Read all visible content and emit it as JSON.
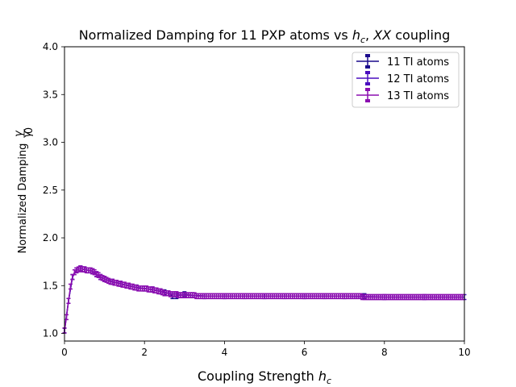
{
  "chart_data": {
    "type": "line",
    "title_parts": {
      "prefix": "Normalized Damping for 11 PXP atoms vs ",
      "var1": "h",
      "var1_sub": "c",
      "sep": ", ",
      "var2": "XX",
      "suffix": " coupling"
    },
    "xlabel_parts": {
      "text": "Coupling Strength ",
      "var": "h",
      "sub": "c"
    },
    "ylabel_parts": {
      "text": "Normalized Damping ",
      "num": "γ",
      "den": "γ",
      "den_sub": "0"
    },
    "xlim": [
      0,
      10
    ],
    "ylim": [
      0.92,
      4.0
    ],
    "xticks": [
      0,
      2,
      4,
      6,
      8,
      10
    ],
    "xtick_labels": [
      "0",
      "2",
      "4",
      "6",
      "8",
      "10"
    ],
    "yticks": [
      1.0,
      1.5,
      2.0,
      2.5,
      3.0,
      3.5,
      4.0
    ],
    "ytick_labels": [
      "1.0",
      "1.5",
      "2.0",
      "2.5",
      "3.0",
      "3.5",
      "4.0"
    ],
    "grid": false,
    "legend_position": "top-right",
    "series": [
      {
        "name": "11 TI atoms",
        "color": "#1a0a8c",
        "x": [
          0.0,
          0.1,
          0.2,
          0.3,
          0.4,
          0.5,
          0.6,
          0.7,
          0.8,
          0.9,
          1.0,
          1.2,
          1.4,
          1.6,
          1.8,
          2.0,
          2.2,
          2.4,
          2.5,
          2.6,
          2.7,
          2.8,
          2.9,
          3.0,
          3.2,
          3.5,
          4.0,
          4.5,
          5.0,
          5.5,
          6.0,
          6.5,
          7.0,
          7.5
        ],
        "y": [
          1.03,
          1.34,
          1.59,
          1.66,
          1.68,
          1.67,
          1.66,
          1.65,
          1.62,
          1.59,
          1.57,
          1.54,
          1.52,
          1.5,
          1.48,
          1.47,
          1.46,
          1.44,
          1.43,
          1.42,
          1.39,
          1.39,
          1.4,
          1.41,
          1.4,
          1.39,
          1.39,
          1.39,
          1.39,
          1.39,
          1.39,
          1.39,
          1.39,
          1.39
        ]
      },
      {
        "name": "12 TI atoms",
        "color": "#4a0dbf",
        "x": [
          0.0,
          0.1,
          0.2,
          0.3,
          0.4,
          0.5,
          0.6,
          0.7,
          0.8,
          0.9,
          1.0,
          1.2,
          1.4,
          1.6,
          1.8,
          2.0,
          2.2,
          2.4,
          2.6,
          2.8,
          3.0,
          3.5,
          4.0,
          5.0,
          6.0,
          7.0,
          8.0,
          9.0,
          10.0
        ],
        "y": [
          1.03,
          1.34,
          1.59,
          1.66,
          1.68,
          1.67,
          1.66,
          1.65,
          1.62,
          1.59,
          1.57,
          1.54,
          1.52,
          1.5,
          1.48,
          1.47,
          1.46,
          1.44,
          1.42,
          1.41,
          1.4,
          1.39,
          1.39,
          1.39,
          1.39,
          1.39,
          1.38,
          1.38,
          1.38
        ]
      },
      {
        "name": "13 TI atoms",
        "color": "#8b0fb0",
        "x": [
          0.0,
          0.05,
          0.1,
          0.15,
          0.2,
          0.25,
          0.3,
          0.35,
          0.4,
          0.45,
          0.5,
          0.55,
          0.6,
          0.65,
          0.7,
          0.75,
          0.8,
          0.85,
          0.9,
          0.95,
          1.0,
          1.05,
          1.1,
          1.15,
          1.2,
          1.25,
          1.3,
          1.35,
          1.4,
          1.45,
          1.5,
          1.55,
          1.6,
          1.65,
          1.7,
          1.75,
          1.8,
          1.85,
          1.9,
          1.95,
          2.0,
          2.05,
          2.1,
          2.15,
          2.2,
          2.25,
          2.3,
          2.35,
          2.4,
          2.45,
          2.5,
          2.55,
          2.6,
          2.65,
          2.7,
          2.75,
          2.8,
          2.85,
          2.9,
          2.95,
          3.0,
          3.05,
          3.1,
          3.15,
          3.2,
          3.25,
          3.3,
          3.35,
          3.4,
          3.45,
          3.5,
          3.55,
          3.6,
          3.65,
          3.7,
          3.75,
          3.8,
          3.85,
          3.9,
          3.95,
          4.0,
          4.05,
          4.1,
          4.15,
          4.2,
          4.25,
          4.3,
          4.35,
          4.4,
          4.45,
          4.5,
          4.55,
          4.6,
          4.65,
          4.7,
          4.75,
          4.8,
          4.85,
          4.9,
          4.95,
          5.0,
          5.05,
          5.1,
          5.15,
          5.2,
          5.25,
          5.3,
          5.35,
          5.4,
          5.45,
          5.5,
          5.55,
          5.6,
          5.65,
          5.7,
          5.75,
          5.8,
          5.85,
          5.9,
          5.95,
          6.0,
          6.05,
          6.1,
          6.15,
          6.2,
          6.25,
          6.3,
          6.35,
          6.4,
          6.45,
          6.5,
          6.55,
          6.6,
          6.65,
          6.7,
          6.75,
          6.8,
          6.85,
          6.9,
          6.95,
          7.0,
          7.05,
          7.1,
          7.15,
          7.2,
          7.25,
          7.3,
          7.35,
          7.4,
          7.45,
          7.5,
          7.55,
          7.6,
          7.65,
          7.7,
          7.75,
          7.8,
          7.85,
          7.9,
          7.95,
          8.0,
          8.05,
          8.1,
          8.15,
          8.2,
          8.25,
          8.3,
          8.35,
          8.4,
          8.45,
          8.5,
          8.55,
          8.6,
          8.65,
          8.7,
          8.75,
          8.8,
          8.85,
          8.9,
          8.95,
          9.0,
          9.05,
          9.1,
          9.15,
          9.2,
          9.25,
          9.3,
          9.35,
          9.4,
          9.45,
          9.5,
          9.55,
          9.6,
          9.65,
          9.7,
          9.75,
          9.8,
          9.85,
          9.9,
          9.95
        ],
        "y": [
          1.03,
          1.17,
          1.34,
          1.49,
          1.59,
          1.64,
          1.66,
          1.67,
          1.68,
          1.67,
          1.67,
          1.66,
          1.66,
          1.66,
          1.65,
          1.64,
          1.62,
          1.61,
          1.59,
          1.58,
          1.57,
          1.56,
          1.55,
          1.54,
          1.54,
          1.53,
          1.53,
          1.52,
          1.52,
          1.51,
          1.51,
          1.5,
          1.5,
          1.49,
          1.49,
          1.48,
          1.48,
          1.47,
          1.47,
          1.47,
          1.47,
          1.47,
          1.46,
          1.46,
          1.46,
          1.45,
          1.45,
          1.44,
          1.44,
          1.43,
          1.42,
          1.42,
          1.42,
          1.41,
          1.41,
          1.41,
          1.41,
          1.4,
          1.4,
          1.4,
          1.4,
          1.4,
          1.4,
          1.4,
          1.4,
          1.4,
          1.39,
          1.39,
          1.39,
          1.39,
          1.39,
          1.39,
          1.39,
          1.39,
          1.39,
          1.39,
          1.39,
          1.39,
          1.39,
          1.39,
          1.39,
          1.39,
          1.39,
          1.39,
          1.39,
          1.39,
          1.39,
          1.39,
          1.39,
          1.39,
          1.39,
          1.39,
          1.39,
          1.39,
          1.39,
          1.39,
          1.39,
          1.39,
          1.39,
          1.39,
          1.39,
          1.39,
          1.39,
          1.39,
          1.39,
          1.39,
          1.39,
          1.39,
          1.39,
          1.39,
          1.39,
          1.39,
          1.39,
          1.39,
          1.39,
          1.39,
          1.39,
          1.39,
          1.39,
          1.39,
          1.39,
          1.39,
          1.39,
          1.39,
          1.39,
          1.39,
          1.39,
          1.39,
          1.39,
          1.39,
          1.39,
          1.39,
          1.39,
          1.39,
          1.39,
          1.39,
          1.39,
          1.39,
          1.39,
          1.39,
          1.39,
          1.39,
          1.39,
          1.39,
          1.39,
          1.39,
          1.39,
          1.39,
          1.39,
          1.38,
          1.38,
          1.38,
          1.38,
          1.38,
          1.38,
          1.38,
          1.38,
          1.38,
          1.38,
          1.38,
          1.38,
          1.38,
          1.38,
          1.38,
          1.38,
          1.38,
          1.38,
          1.38,
          1.38,
          1.38,
          1.38,
          1.38,
          1.38,
          1.38,
          1.38,
          1.38,
          1.38,
          1.38,
          1.38,
          1.38,
          1.38,
          1.38,
          1.38,
          1.38,
          1.38,
          1.38,
          1.38,
          1.38,
          1.38,
          1.38,
          1.38,
          1.38,
          1.38,
          1.38,
          1.38,
          1.38,
          1.38,
          1.38,
          1.38,
          1.38
        ]
      }
    ]
  }
}
